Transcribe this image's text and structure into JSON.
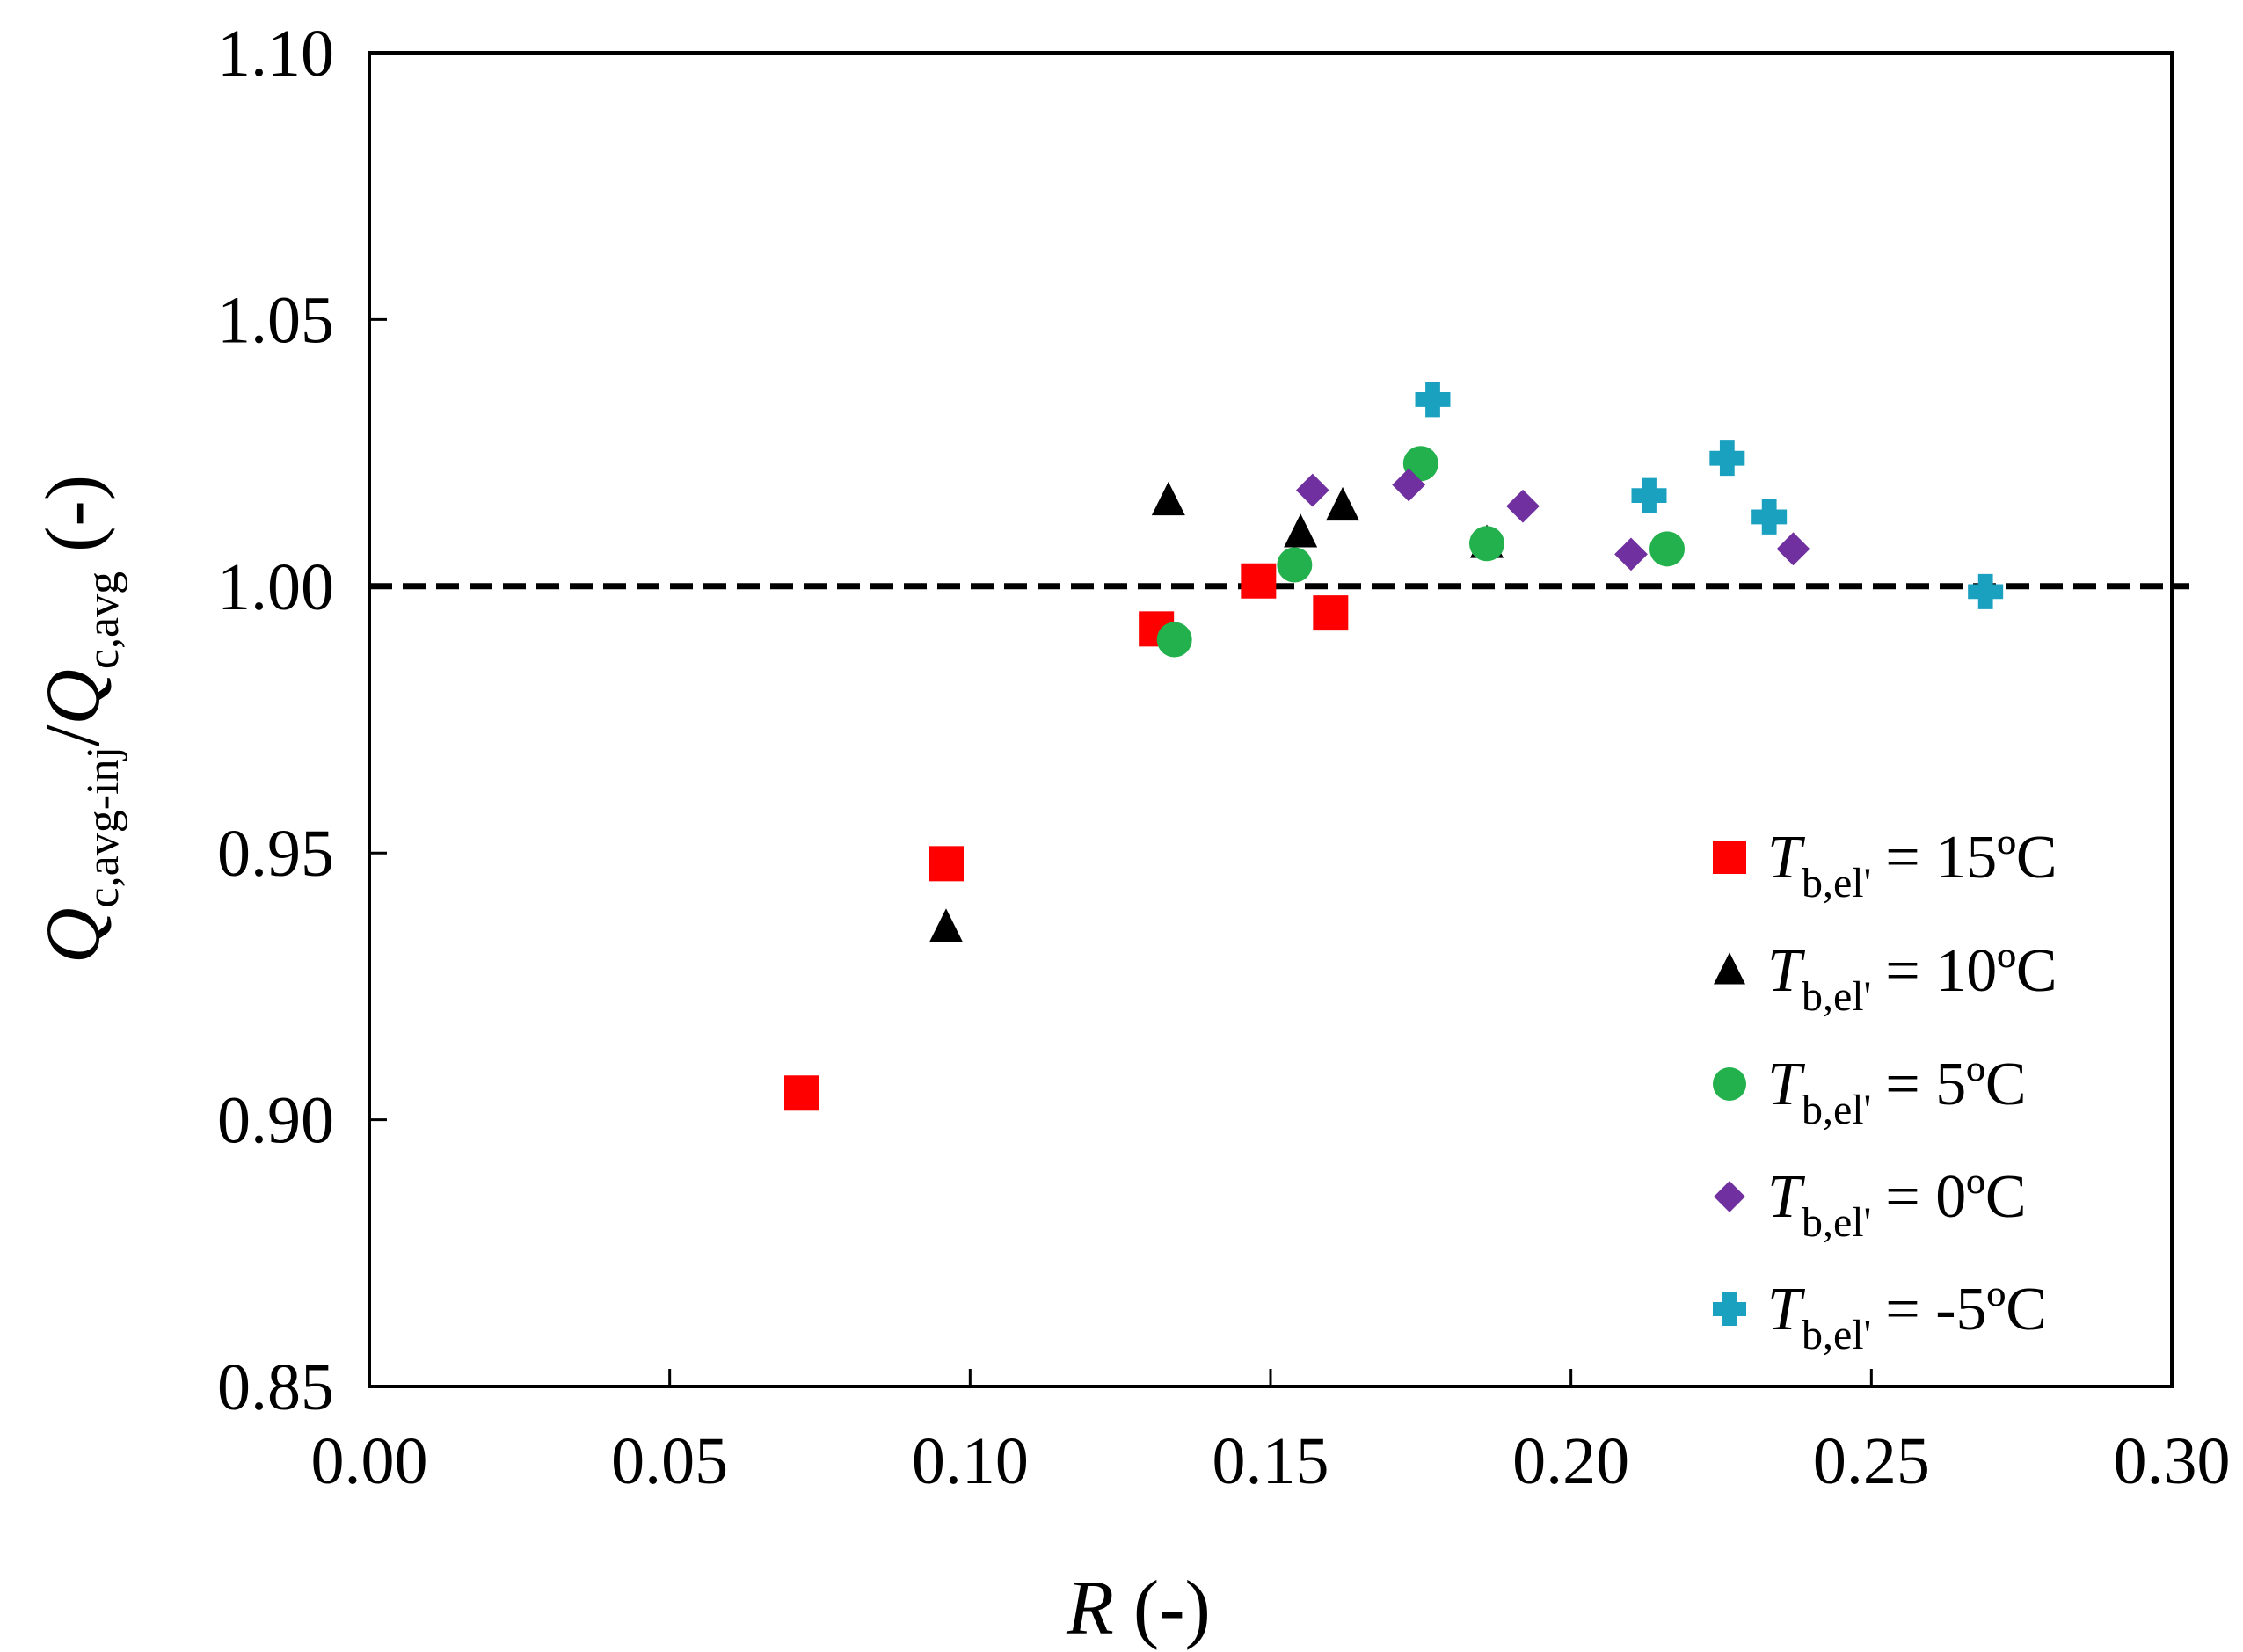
{
  "chart_data": {
    "type": "scatter",
    "title": "",
    "xlabel": {
      "symbol": "R",
      "unit": " (-)"
    },
    "ylabel": {
      "q1": "Q",
      "sub1": "c,avg-inj",
      "slash": "/",
      "q2": "Q",
      "sub2": "c,avg",
      "unit": " (-)"
    },
    "xlim": [
      0.0,
      0.3
    ],
    "ylim": [
      0.85,
      1.1
    ],
    "xticks": [
      "0.00",
      "0.05",
      "0.10",
      "0.15",
      "0.20",
      "0.25",
      "0.30"
    ],
    "yticks": [
      "0.85",
      "0.90",
      "0.95",
      "1.00",
      "1.05",
      "1.10"
    ],
    "reference_line": {
      "y": 1.0,
      "style": "dashed",
      "color": "#000000"
    },
    "legend_position": "lower-right",
    "series": [
      {
        "name": "= 15ºC",
        "symbol": "T",
        "sub": "b,el'",
        "label": "= 15ºC",
        "marker": "square",
        "color": "#ff0000",
        "points": [
          [
            0.072,
            0.905
          ],
          [
            0.096,
            0.948
          ],
          [
            0.131,
            0.992
          ],
          [
            0.148,
            1.001
          ],
          [
            0.16,
            0.995
          ]
        ]
      },
      {
        "name": "= 10ºC",
        "symbol": "T",
        "sub": "b,el'",
        "label": "= 10ºC",
        "marker": "triangle",
        "color": "#000000",
        "points": [
          [
            0.096,
            0.936
          ],
          [
            0.133,
            1.016
          ],
          [
            0.155,
            1.01
          ],
          [
            0.162,
            1.015
          ],
          [
            0.186,
            1.008
          ]
        ]
      },
      {
        "name": "= 5ºC",
        "symbol": "T",
        "sub": "b,el'",
        "label": "= 5ºC",
        "marker": "circle",
        "color": "#22b14c",
        "points": [
          [
            0.134,
            0.99
          ],
          [
            0.154,
            1.004
          ],
          [
            0.175,
            1.023
          ],
          [
            0.186,
            1.008
          ],
          [
            0.216,
            1.007
          ]
        ]
      },
      {
        "name": "= 0ºC",
        "symbol": "T",
        "sub": "b,el'",
        "label": "= 0ºC",
        "marker": "diamond",
        "color": "#7030a0",
        "points": [
          [
            0.157,
            1.018
          ],
          [
            0.173,
            1.019
          ],
          [
            0.192,
            1.015
          ],
          [
            0.21,
            1.006
          ],
          [
            0.237,
            1.007
          ]
        ]
      },
      {
        "name": "= -5ºC",
        "symbol": "T",
        "sub": "b,el'",
        "label": "= -5ºC",
        "marker": "plus",
        "color": "#1ba1c0",
        "points": [
          [
            0.177,
            1.035
          ],
          [
            0.213,
            1.017
          ],
          [
            0.226,
            1.024
          ],
          [
            0.233,
            1.013
          ],
          [
            0.269,
            0.999
          ]
        ]
      }
    ]
  }
}
